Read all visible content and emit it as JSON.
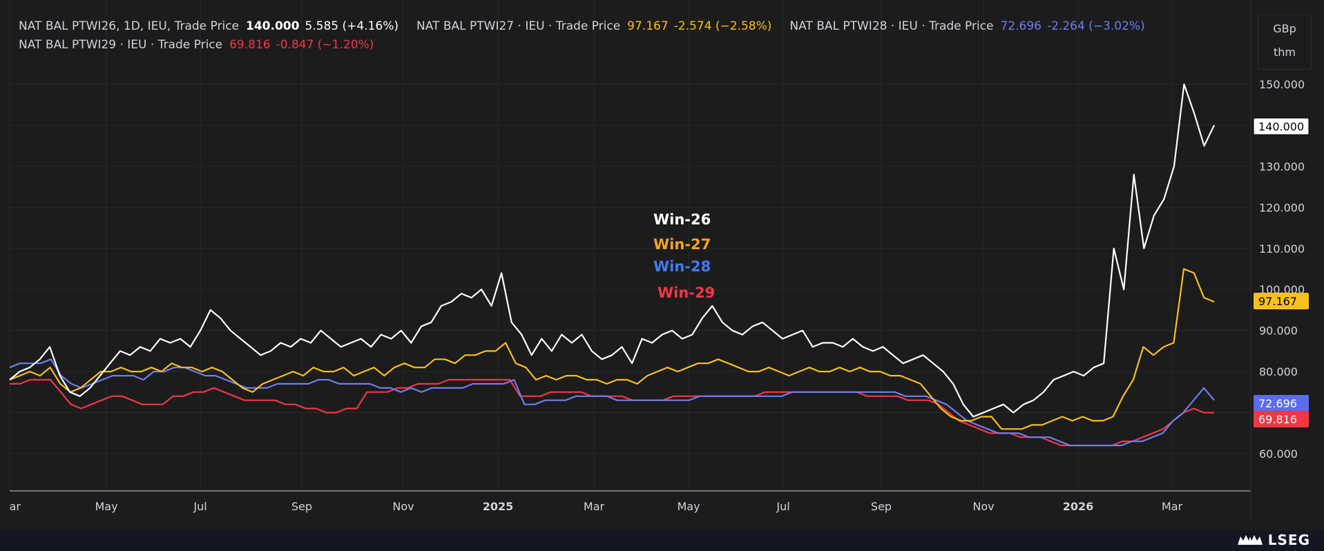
{
  "legend": {
    "rows": [
      [
        {
          "label": "NAT BAL PTWI26, 1D, IEU, Trade Price",
          "value": "140.000",
          "change": "5.585 (+4.16%)",
          "color": "#ffffff"
        },
        {
          "label": "NAT BAL PTWI27 · IEU · Trade Price",
          "value": "97.167",
          "change": "-2.574 (−2.58%)",
          "color": "#f7c01d"
        },
        {
          "label": "NAT BAL PTWI28 · IEU · Trade Price",
          "value": "72.696",
          "change": "-2.264 (−3.02%)",
          "color": "#6f7ff0"
        }
      ],
      [
        {
          "label": "NAT BAL PTWI29 · IEU · Trade Price",
          "value": "69.816",
          "change": "-0.847 (−1.20%)",
          "color": "#f23645"
        }
      ]
    ]
  },
  "unit": {
    "line1": "GBp",
    "line2": "thm"
  },
  "brand": "LSEG",
  "chart_data": {
    "type": "line",
    "x_ticks": [
      "ar",
      "May",
      "Jul",
      "Sep",
      "Nov",
      "2025",
      "Mar",
      "May",
      "Jul",
      "Sep",
      "Nov",
      "2026",
      "Mar"
    ],
    "y_ticks": [
      "60.000",
      "70.000",
      "80.000",
      "90.000",
      "100.000",
      "110.000",
      "120.000",
      "130.000",
      "140.000",
      "150.000"
    ],
    "ylim": [
      50.5,
      155
    ],
    "grid": true,
    "annotations": [
      {
        "text": "Win-26",
        "color": "#ffffff"
      },
      {
        "text": "Win-27",
        "color": "#f7a41d"
      },
      {
        "text": "Win-28",
        "color": "#3d7cf2"
      },
      {
        "text": "Win-29",
        "color": "#f23645"
      }
    ],
    "series": [
      {
        "name": "NAT BAL PTWI26",
        "color": "#ffffff",
        "last_value": "140.000",
        "values": [
          78,
          80,
          81,
          83,
          86,
          79,
          75,
          74,
          76,
          79,
          82,
          85,
          84,
          86,
          85,
          88,
          87,
          88,
          86,
          90,
          95,
          93,
          90,
          88,
          86,
          84,
          85,
          87,
          86,
          88,
          87,
          90,
          88,
          86,
          87,
          88,
          86,
          89,
          88,
          90,
          87,
          91,
          92,
          96,
          97,
          99,
          98,
          100,
          96,
          104,
          92,
          89,
          84,
          88,
          85,
          89,
          87,
          89,
          85,
          83,
          84,
          86,
          82,
          88,
          87,
          89,
          90,
          88,
          89,
          93,
          96,
          92,
          90,
          89,
          91,
          92,
          90,
          88,
          89,
          90,
          86,
          87,
          87,
          86,
          88,
          86,
          85,
          86,
          84,
          82,
          83,
          84,
          82,
          80,
          77,
          72,
          69,
          70,
          71,
          72,
          70,
          72,
          73,
          75,
          78,
          79,
          80,
          79,
          81,
          82,
          110,
          100,
          128,
          110,
          118,
          122,
          130,
          150,
          143,
          135,
          140
        ]
      },
      {
        "name": "NAT BAL PTWI27",
        "color": "#f7c01d",
        "last_value": "97.167",
        "values": [
          78,
          79,
          80,
          79,
          81,
          77,
          75,
          76,
          78,
          80,
          80,
          81,
          80,
          80,
          81,
          80,
          82,
          81,
          81,
          80,
          81,
          80,
          78,
          76,
          75,
          77,
          78,
          79,
          80,
          79,
          81,
          80,
          80,
          81,
          79,
          80,
          81,
          79,
          81,
          82,
          81,
          81,
          83,
          83,
          82,
          84,
          84,
          85,
          85,
          87,
          82,
          81,
          78,
          79,
          78,
          79,
          79,
          78,
          78,
          77,
          78,
          78,
          77,
          79,
          80,
          81,
          80,
          81,
          82,
          82,
          83,
          82,
          81,
          80,
          80,
          81,
          80,
          79,
          80,
          81,
          80,
          80,
          81,
          80,
          81,
          80,
          80,
          79,
          79,
          78,
          77,
          74,
          71,
          69,
          68,
          68,
          69,
          69,
          66,
          66,
          66,
          67,
          67,
          68,
          69,
          68,
          69,
          68,
          68,
          69,
          74,
          78,
          86,
          84,
          86,
          87,
          105,
          104,
          98,
          97
        ]
      },
      {
        "name": "NAT BAL PTWI28",
        "color": "#6f7ff0",
        "last_value": "72.696",
        "values": [
          81,
          82,
          82,
          82,
          83,
          79,
          77,
          76,
          77,
          78,
          79,
          79,
          79,
          78,
          80,
          80,
          81,
          81,
          80,
          79,
          79,
          78,
          77,
          76,
          76,
          76,
          77,
          77,
          77,
          77,
          78,
          78,
          77,
          77,
          77,
          77,
          76,
          76,
          75,
          76,
          75,
          76,
          76,
          76,
          76,
          77,
          77,
          77,
          77,
          78,
          72,
          72,
          73,
          73,
          73,
          74,
          74,
          74,
          74,
          73,
          73,
          73,
          73,
          73,
          73,
          73,
          73,
          74,
          74,
          74,
          74,
          74,
          74,
          74,
          74,
          74,
          75,
          75,
          75,
          75,
          75,
          75,
          75,
          75,
          75,
          75,
          75,
          74,
          74,
          74,
          73,
          72,
          70,
          68,
          67,
          66,
          65,
          65,
          65,
          64,
          64,
          64,
          63,
          62,
          62,
          62,
          62,
          62,
          62,
          63,
          63,
          64,
          65,
          68,
          70,
          73,
          76,
          73
        ]
      },
      {
        "name": "NAT BAL PTWI29",
        "color": "#f23645",
        "last_value": "69.816",
        "values": [
          77,
          77,
          78,
          78,
          78,
          75,
          72,
          71,
          72,
          73,
          74,
          74,
          73,
          72,
          72,
          72,
          74,
          74,
          75,
          75,
          76,
          75,
          74,
          73,
          73,
          73,
          73,
          72,
          72,
          71,
          71,
          70,
          70,
          71,
          71,
          75,
          75,
          75,
          76,
          76,
          77,
          77,
          77,
          78,
          78,
          78,
          78,
          78,
          78,
          78,
          74,
          74,
          74,
          75,
          75,
          75,
          75,
          74,
          74,
          74,
          74,
          73,
          73,
          73,
          73,
          74,
          74,
          74,
          74,
          74,
          74,
          74,
          74,
          74,
          75,
          75,
          75,
          75,
          75,
          75,
          75,
          75,
          75,
          75,
          74,
          74,
          74,
          74,
          73,
          73,
          73,
          72,
          70,
          68,
          67,
          66,
          65,
          65,
          65,
          64,
          64,
          64,
          63,
          62,
          62,
          62,
          62,
          62,
          62,
          63,
          63,
          64,
          65,
          66,
          68,
          70,
          71,
          70,
          70
        ]
      }
    ]
  }
}
